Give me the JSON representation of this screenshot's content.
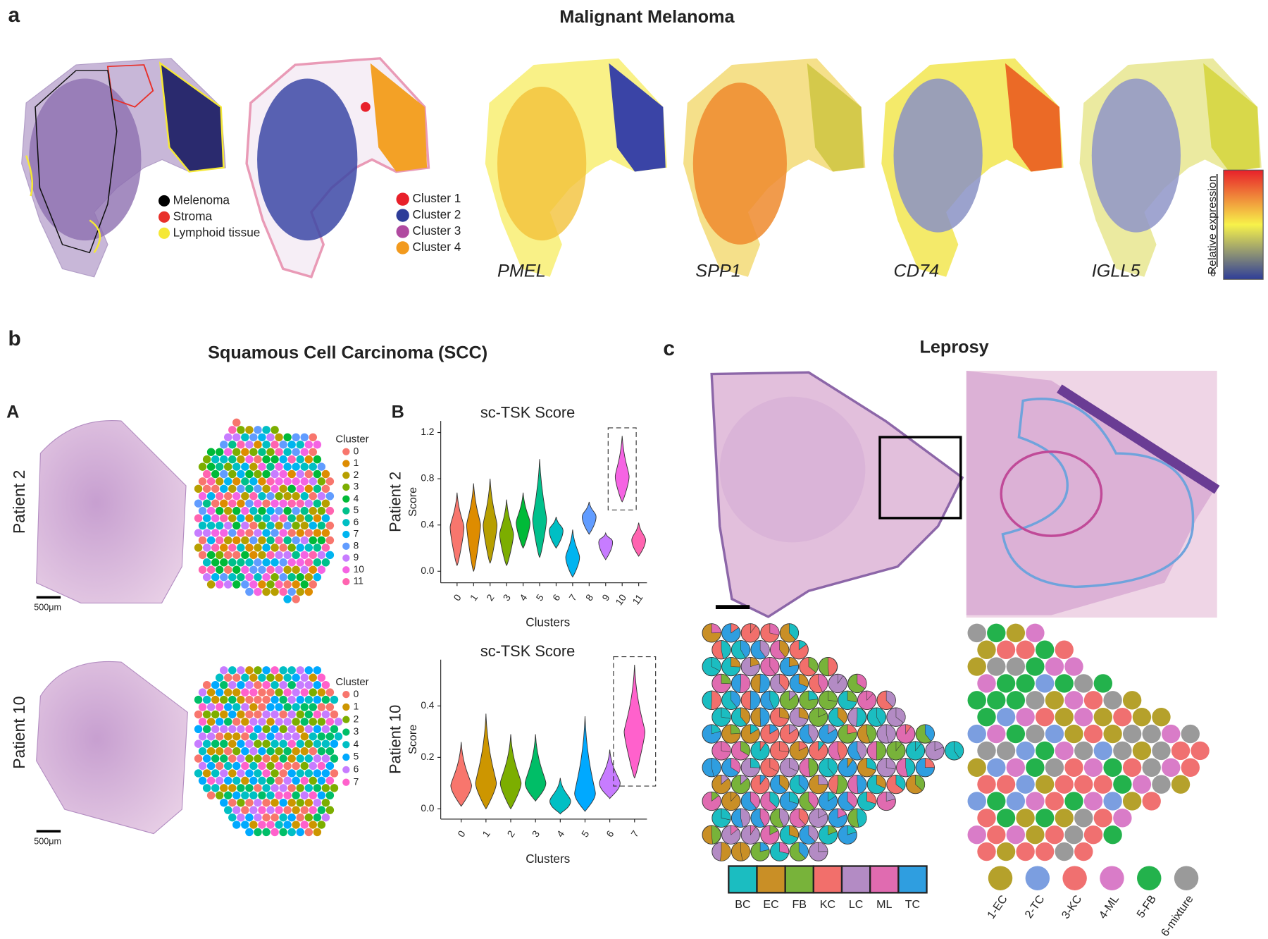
{
  "panel_a": {
    "letter": "a",
    "title": "Malignant Melanoma",
    "tissue_legend": [
      {
        "label": "Melenoma",
        "color": "#000000"
      },
      {
        "label": "Stroma",
        "color": "#e8302a"
      },
      {
        "label": "Lymphoid tissue",
        "color": "#f5e836"
      }
    ],
    "cluster_legend": [
      {
        "label": "Cluster 1",
        "color": "#e8202a"
      },
      {
        "label": "Cluster 2",
        "color": "#2e3d99"
      },
      {
        "label": "Cluster 3",
        "color": "#b04aa0"
      },
      {
        "label": "Cluster 4",
        "color": "#f29a1e"
      }
    ],
    "genes": [
      "PMEL",
      "SPP1",
      "CD74",
      "IGLL5"
    ],
    "colorbar": {
      "label": "Relative expression",
      "min_label": "0"
    }
  },
  "panel_b": {
    "letter": "b",
    "title": "Squamous Cell Carcinoma (SCC)",
    "part_a": "A",
    "part_b": "B",
    "patients": [
      {
        "label": "Patient 2",
        "scale_bar": "500μm",
        "legend_title": "Cluster",
        "clusters": [
          "0",
          "1",
          "2",
          "3",
          "4",
          "5",
          "6",
          "7",
          "8",
          "9",
          "10",
          "11"
        ],
        "colors": [
          "#F8766D",
          "#DE8C00",
          "#B79F00",
          "#7CAE00",
          "#00BA38",
          "#00C08B",
          "#00BFC4",
          "#00B4F0",
          "#619CFF",
          "#C77CFF",
          "#F564E3",
          "#FF64B0"
        ]
      },
      {
        "label": "Patient 10",
        "scale_bar": "500μm",
        "legend_title": "Cluster",
        "clusters": [
          "0",
          "1",
          "2",
          "3",
          "4",
          "5",
          "6",
          "7"
        ],
        "colors": [
          "#F8766D",
          "#CD9600",
          "#7CAE00",
          "#00BE67",
          "#00BFC4",
          "#00A9FF",
          "#C77CFF",
          "#FF61CC"
        ]
      }
    ]
  },
  "panel_c": {
    "letter": "c",
    "title": "Leprosy",
    "cell_types": [
      {
        "label": "BC",
        "color": "#1bbdc1"
      },
      {
        "label": "EC",
        "color": "#c98f26"
      },
      {
        "label": "FB",
        "color": "#78b33a"
      },
      {
        "label": "KC",
        "color": "#f26f6b"
      },
      {
        "label": "LC",
        "color": "#b38bc4"
      },
      {
        "label": "ML",
        "color": "#e06bb0"
      },
      {
        "label": "TC",
        "color": "#2f9ee0"
      }
    ],
    "clusters": [
      {
        "label": "1-EC",
        "color": "#b5a12b"
      },
      {
        "label": "2-TC",
        "color": "#7b9ee0"
      },
      {
        "label": "3-KC",
        "color": "#f07070"
      },
      {
        "label": "4-ML",
        "color": "#d97cc8"
      },
      {
        "label": "5-FB",
        "color": "#23b24c"
      },
      {
        "label": "6-mixture",
        "color": "#9a9a9a"
      }
    ]
  },
  "chart_data": [
    {
      "type": "violin",
      "title": "sc-TSK Score",
      "y_label": "Score",
      "x_label": "Clusters",
      "categories": [
        "0",
        "1",
        "2",
        "3",
        "4",
        "5",
        "6",
        "7",
        "8",
        "9",
        "10",
        "11"
      ],
      "values": [
        0.38,
        0.4,
        0.4,
        0.32,
        0.42,
        0.45,
        0.35,
        0.12,
        0.47,
        0.25,
        0.82,
        0.27
      ],
      "mins": [
        0.05,
        0.0,
        0.07,
        0.05,
        0.2,
        0.12,
        0.2,
        -0.05,
        0.32,
        0.1,
        0.6,
        0.13
      ],
      "maxs": [
        0.68,
        0.76,
        0.8,
        0.62,
        0.68,
        0.97,
        0.47,
        0.36,
        0.6,
        0.33,
        1.17,
        0.42
      ],
      "colors": [
        "#F8766D",
        "#DE8C00",
        "#B79F00",
        "#7CAE00",
        "#00BA38",
        "#00C08B",
        "#00BFC4",
        "#00B4F0",
        "#619CFF",
        "#C77CFF",
        "#F564E3",
        "#FF64B0"
      ],
      "ylim": [
        -0.1,
        1.3
      ],
      "yticks": [
        {
          "value": 0,
          "label": "0.0"
        },
        0.4,
        0.8,
        1.2
      ],
      "highlight_category": "10"
    },
    {
      "type": "violin",
      "title": "sc-TSK Score",
      "y_label": "Score",
      "x_label": "Clusters",
      "categories": [
        "0",
        "1",
        "2",
        "3",
        "4",
        "5",
        "6",
        "7"
      ],
      "values": [
        0.09,
        0.1,
        0.1,
        0.1,
        0.03,
        0.06,
        0.1,
        0.3
      ],
      "mins": [
        0.01,
        0.0,
        0.0,
        0.03,
        -0.02,
        -0.01,
        0.04,
        0.12
      ],
      "maxs": [
        0.26,
        0.37,
        0.29,
        0.29,
        0.12,
        0.36,
        0.23,
        0.56
      ],
      "colors": [
        "#F8766D",
        "#CD9600",
        "#7CAE00",
        "#00BE67",
        "#00BFC4",
        "#00A9FF",
        "#C77CFF",
        "#FF61CC"
      ],
      "ylim": [
        -0.04,
        0.58
      ],
      "yticks": [
        {
          "value": 0,
          "label": "0.0"
        },
        0.2,
        0.4
      ],
      "highlight_category": "7"
    }
  ]
}
